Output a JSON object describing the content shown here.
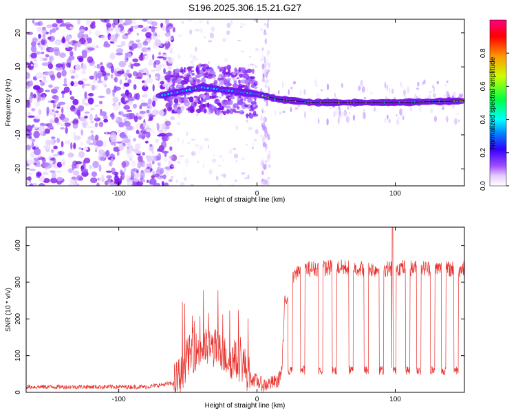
{
  "title": "S196.2025.306.15.21.G27",
  "chart_data": [
    {
      "type": "heatmap",
      "title": "S196.2025.306.15.21.G27",
      "xlabel": "Height of straight line (km)",
      "ylabel": "Frequency (Hz)",
      "xlim": [
        -167,
        150
      ],
      "ylim": [
        -25,
        24
      ],
      "xticks": [
        -100,
        0,
        100
      ],
      "xtick_labels": [
        "-100",
        "0",
        "100"
      ],
      "yticks": [
        -20,
        -10,
        0,
        10,
        20
      ],
      "ytick_labels": [
        "-20",
        "-10",
        "0",
        "10",
        "20"
      ],
      "colorbar": {
        "label": "Normalized spectral amplitude",
        "range": [
          0,
          1
        ],
        "ticks": [
          0.0,
          0.2,
          0.4,
          0.6,
          0.8
        ],
        "tick_labels": [
          "0.0",
          "0.2",
          "0.4",
          "0.6",
          "0.8"
        ],
        "colors": [
          "#ffffff",
          "#cc99ff",
          "#7f00ff",
          "#0000ff",
          "#00ffff",
          "#00ff00",
          "#ffff00",
          "#ff0000",
          "#ff0088"
        ]
      },
      "features": {
        "noise_region_km": [
          -167,
          -65
        ],
        "transition_region_km": [
          -65,
          0
        ],
        "carrier_track": [
          {
            "x": -70,
            "y": 1.5
          },
          {
            "x": -40,
            "y": 4
          },
          {
            "x": -20,
            "y": 3
          },
          {
            "x": 0,
            "y": 2
          },
          {
            "x": 15,
            "y": 0.5
          },
          {
            "x": 40,
            "y": -0.5
          },
          {
            "x": 100,
            "y": -0.5
          },
          {
            "x": 150,
            "y": 0
          }
        ]
      }
    },
    {
      "type": "line",
      "xlabel": "Height of straight line (km)",
      "ylabel": "SNR (10 * v/v)",
      "xlim": [
        -167,
        150
      ],
      "ylim": [
        0,
        450
      ],
      "xticks": [
        -100,
        0,
        100
      ],
      "xtick_labels": [
        "-100",
        "0",
        "100"
      ],
      "yticks": [
        0,
        100,
        200,
        300,
        400
      ],
      "ytick_labels": [
        "0",
        "100",
        "200",
        "300",
        "400"
      ],
      "series": [
        {
          "name": "SNR",
          "color": "#e8302c",
          "anchors_x": [
            -167,
            -120,
            -80,
            -60,
            -55,
            -50,
            -40,
            -30,
            -20,
            -10,
            -5,
            5,
            15,
            18,
            20,
            25,
            30,
            60,
            90,
            100,
            120,
            150
          ],
          "anchors_y": [
            15,
            15,
            15,
            25,
            50,
            100,
            120,
            120,
            90,
            80,
            40,
            20,
            30,
            60,
            240,
            300,
            335,
            340,
            335,
            340,
            338,
            335
          ],
          "dips_x": [
            24,
            33,
            46,
            56,
            68,
            79,
            90,
            99,
            109,
            117,
            127,
            135,
            144
          ],
          "dip_value": 60,
          "spike": {
            "x": 98,
            "y": 450
          }
        }
      ]
    }
  ]
}
